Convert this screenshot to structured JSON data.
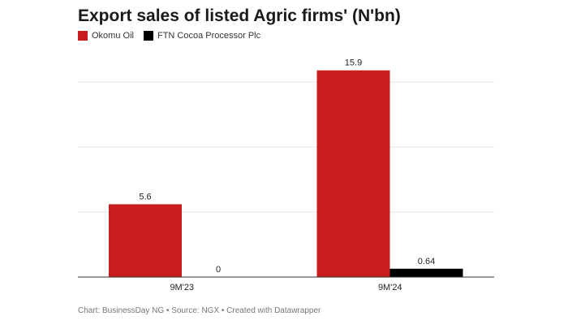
{
  "title": "Export sales of listed Agric firms' (N'bn)",
  "footer": "Chart: BusinessDay NG • Source: NGX • Created with Datawrapper",
  "colors": {
    "okomu": "#c71e1d",
    "ftn": "#000000",
    "grid": "#e6e6e6",
    "axis": "#333333"
  },
  "chart_data": {
    "type": "bar",
    "title": "Export sales of listed Agric firms' (N'bn)",
    "categories": [
      "9M'23",
      "9M'24"
    ],
    "series": [
      {
        "name": "Okomu Oil",
        "values": [
          5.6,
          15.9
        ]
      },
      {
        "name": "FTN Cocoa Processor Plc",
        "values": [
          0,
          0.64
        ]
      }
    ],
    "data_labels": [
      [
        "5.6",
        "15.9"
      ],
      [
        "0",
        "0.64"
      ]
    ],
    "xlabel": "",
    "ylabel": "",
    "ylim": [
      0,
      20
    ],
    "grid": true,
    "legend": "top-left"
  }
}
